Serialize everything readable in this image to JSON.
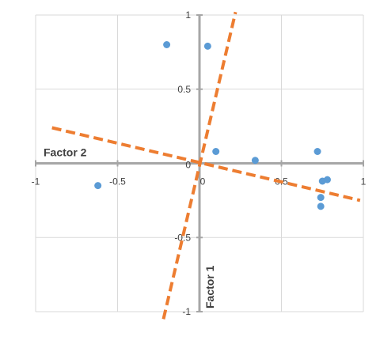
{
  "chart_data": {
    "type": "scatter",
    "xlim": [
      -1,
      1
    ],
    "ylim": [
      -1,
      1
    ],
    "x_ticks": [
      -1,
      -0.5,
      0,
      0.5,
      1
    ],
    "y_ticks": [
      1,
      0.5,
      0,
      -0.5,
      -1
    ],
    "x_tick_labels": [
      "-1",
      "-0.5",
      "0",
      "0.5",
      "1"
    ],
    "y_tick_labels": [
      "1",
      "0.5",
      "0",
      "-0.5",
      "-1"
    ],
    "x_axis_title": "Factor 2",
    "y_axis_title": "Factor 1",
    "grid": true,
    "series": [
      {
        "color": "#5b9bd5",
        "points": [
          {
            "x": -0.2,
            "y": 0.8
          },
          {
            "x": 0.05,
            "y": 0.79
          },
          {
            "x": -0.62,
            "y": -0.15
          },
          {
            "x": 0.1,
            "y": 0.08
          },
          {
            "x": 0.34,
            "y": 0.02
          },
          {
            "x": 0.72,
            "y": 0.08
          },
          {
            "x": 0.75,
            "y": -0.12
          },
          {
            "x": 0.78,
            "y": -0.11
          },
          {
            "x": 0.74,
            "y": -0.23
          },
          {
            "x": 0.74,
            "y": -0.29
          }
        ]
      }
    ],
    "rotated_axes": {
      "color": "#ed7d31",
      "style": "dashed",
      "lines": [
        {
          "from": {
            "x": -0.9,
            "y": 0.24
          },
          "to": {
            "x": 0.98,
            "y": -0.25
          }
        },
        {
          "from": {
            "x": -0.22,
            "y": -1.05
          },
          "to": {
            "x": 0.22,
            "y": 1.02
          }
        }
      ]
    }
  }
}
